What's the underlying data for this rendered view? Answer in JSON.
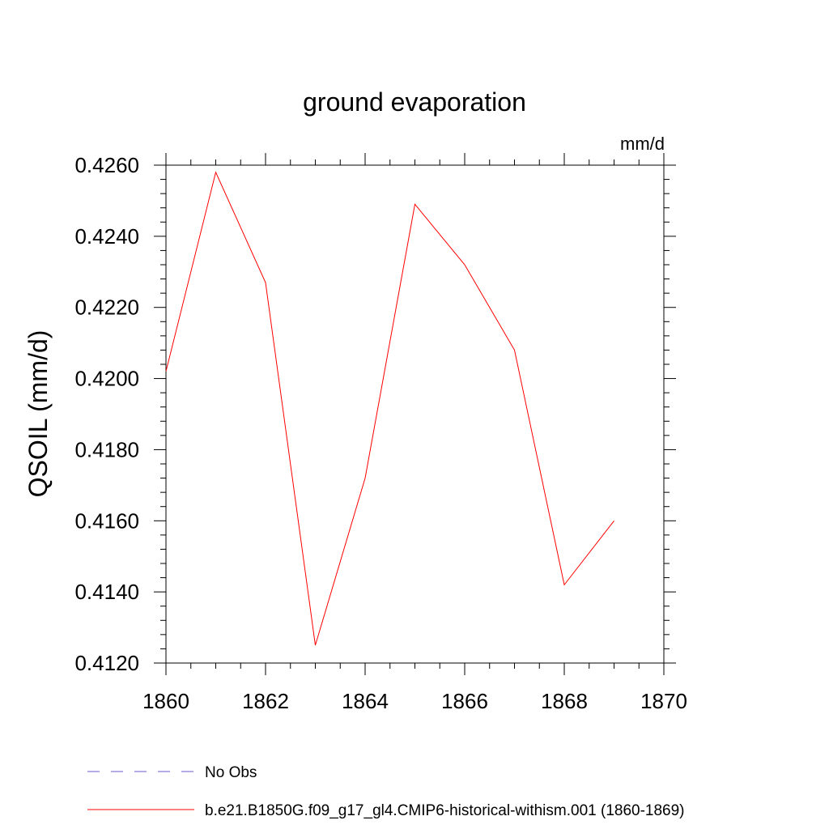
{
  "chart_data": {
    "type": "line",
    "title": "ground evaporation",
    "units_label": "mm/d",
    "ylabel": "QSOIL  (mm/d)",
    "xlabel": "",
    "xlim": [
      1860,
      1870
    ],
    "ylim": [
      0.412,
      0.426
    ],
    "x_ticks": [
      1860,
      1862,
      1864,
      1866,
      1868,
      1870
    ],
    "x_tick_labels": [
      "1860",
      "1862",
      "1864",
      "1866",
      "1868",
      "1870"
    ],
    "y_ticks": [
      0.412,
      0.414,
      0.416,
      0.418,
      0.42,
      0.422,
      0.424,
      0.426
    ],
    "y_tick_labels": [
      "0.4120",
      "0.4140",
      "0.4160",
      "0.4180",
      "0.4200",
      "0.4220",
      "0.4240",
      "0.4260"
    ],
    "grid": false,
    "legend_position": "bottom-left",
    "series": [
      {
        "name": "b.e21.B1850G.f09_g17_gl4.CMIP6-historical-withism.001 (1860-1869)",
        "color": "#ff0000",
        "style": "solid",
        "x": [
          1860,
          1861,
          1862,
          1863,
          1864,
          1865,
          1866,
          1867,
          1868,
          1869
        ],
        "values": [
          0.4202,
          0.4258,
          0.4227,
          0.4125,
          0.4172,
          0.4249,
          0.4232,
          0.4208,
          0.4142,
          0.416
        ]
      }
    ],
    "legend": [
      {
        "label": "No Obs",
        "color": "#6a5acd",
        "style": "dashed"
      },
      {
        "label": "b.e21.B1850G.f09_g17_gl4.CMIP6-historical-withism.001 (1860-1869)",
        "color": "#ff0000",
        "style": "solid"
      }
    ]
  }
}
